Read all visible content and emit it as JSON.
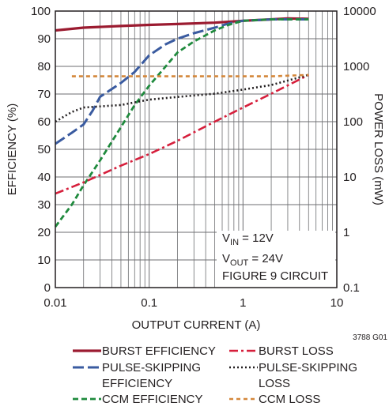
{
  "chart_data": {
    "type": "line",
    "title": "",
    "xlabel": "OUTPUT CURRENT (A)",
    "ylabel": "EFFICIENCY (%)",
    "y2label": "POWER LOSS (mW)",
    "x_scale": "log",
    "y2_scale": "log",
    "xlim": [
      0.01,
      10
    ],
    "ylim": [
      0,
      100
    ],
    "y2lim": [
      0.1,
      10000
    ],
    "x_ticks": [
      "0.01",
      "0.1",
      "1",
      "10"
    ],
    "y_ticks": [
      "0",
      "10",
      "20",
      "30",
      "40",
      "50",
      "60",
      "70",
      "80",
      "90",
      "100"
    ],
    "y2_ticks": [
      "0.1",
      "1",
      "10",
      "100",
      "1000",
      "10000"
    ],
    "grid": true,
    "figure_id": "3788 G01",
    "annotation": {
      "vin_main": "V",
      "vin_sub": "IN",
      "vin_rest": " = 12V",
      "vout_main": "V",
      "vout_sub": "OUT",
      "vout_rest": " = 24V",
      "circuit": "FIGURE 9 CIRCUIT"
    },
    "series": [
      {
        "name": "BURST EFFICIENCY",
        "axis": "left",
        "color": "#9b1b30",
        "dash": "",
        "width": 3.2,
        "x": [
          0.01,
          0.02,
          0.05,
          0.1,
          0.2,
          0.5,
          1,
          2,
          3,
          5
        ],
        "y": [
          93,
          94,
          94.6,
          95,
          95.3,
          95.8,
          96.5,
          97,
          97.3,
          97.2
        ]
      },
      {
        "name": "PULSE-SKIPPING EFFICIENCY",
        "axis": "left",
        "color": "#3a5ba0",
        "dash": "14 5",
        "width": 3,
        "x": [
          0.01,
          0.015,
          0.02,
          0.025,
          0.03,
          0.05,
          0.07,
          0.1,
          0.15,
          0.2,
          0.3,
          0.5,
          0.7,
          1,
          2,
          5
        ],
        "y": [
          52,
          56,
          59,
          64,
          69,
          74,
          78,
          84,
          88,
          90,
          92,
          94,
          95.5,
          96.5,
          97,
          97
        ]
      },
      {
        "name": "CCM EFFICIENCY",
        "axis": "left",
        "color": "#1f8a3d",
        "dash": "7 4",
        "width": 2.8,
        "x": [
          0.01,
          0.015,
          0.02,
          0.03,
          0.05,
          0.07,
          0.1,
          0.15,
          0.2,
          0.3,
          0.5,
          0.7,
          1,
          2,
          5
        ],
        "y": [
          22,
          30,
          37,
          46,
          58,
          66,
          73,
          80,
          85,
          89,
          93,
          95,
          96.5,
          97,
          97
        ]
      },
      {
        "name": "BURST LOSS",
        "axis": "right",
        "color": "#d61f3c",
        "dash": "11 4 3 4",
        "width": 2.6,
        "x": [
          0.01,
          0.02,
          0.05,
          0.1,
          0.2,
          0.5,
          1,
          2,
          5
        ],
        "y": [
          5,
          8,
          16,
          26,
          45,
          100,
          180,
          320,
          700
        ]
      },
      {
        "name": "PULSE-SKIPPING LOSS",
        "axis": "right",
        "color": "#231f20",
        "dash": "2 3",
        "width": 2.6,
        "x": [
          0.01,
          0.015,
          0.02,
          0.05,
          0.1,
          0.2,
          0.5,
          1,
          2,
          5
        ],
        "y": [
          100,
          150,
          180,
          200,
          250,
          280,
          320,
          380,
          460,
          700
        ]
      },
      {
        "name": "CCM LOSS",
        "axis": "right",
        "color": "#d4873a",
        "dash": "5 4",
        "width": 2.6,
        "x": [
          0.015,
          0.05,
          0.1,
          0.2,
          0.5,
          1,
          2,
          5
        ],
        "y": [
          660,
          660,
          660,
          660,
          660,
          660,
          660,
          700
        ]
      }
    ],
    "legend": [
      {
        "label": "BURST EFFICIENCY",
        "series": 0
      },
      {
        "label": "BURST LOSS",
        "series": 3
      },
      {
        "label": "PULSE-SKIPPING",
        "label2": "EFFICIENCY",
        "series": 1
      },
      {
        "label": "PULSE-SKIPPING",
        "label2": "LOSS",
        "series": 4
      },
      {
        "label": "CCM EFFICIENCY",
        "series": 2
      },
      {
        "label": "CCM LOSS",
        "series": 5
      }
    ],
    "legend_placement": "bottom"
  }
}
